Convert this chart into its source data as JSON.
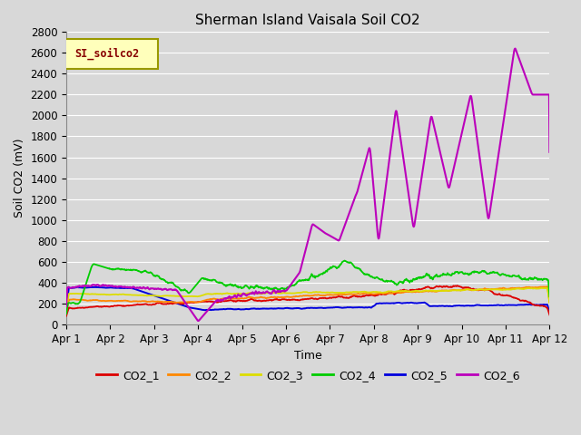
{
  "title": "Sherman Island Vaisala Soil CO2",
  "xlabel": "Time",
  "ylabel": "Soil CO2 (mV)",
  "legend_label": "SI_soilco2",
  "ylim": [
    0,
    2800
  ],
  "xlim": [
    0,
    11
  ],
  "xtick_labels": [
    "Apr 1",
    "Apr 2",
    "Apr 3",
    "Apr 4",
    "Apr 5",
    "Apr 6",
    "Apr 7",
    "Apr 8",
    "Apr 9",
    "Apr 10",
    "Apr 11",
    "Apr 12"
  ],
  "ytick_vals": [
    0,
    200,
    400,
    600,
    800,
    1000,
    1200,
    1400,
    1600,
    1800,
    2000,
    2200,
    2400,
    2600,
    2800
  ],
  "series_colors": {
    "CO2_1": "#dd0000",
    "CO2_2": "#ff8800",
    "CO2_3": "#dddd00",
    "CO2_4": "#00cc00",
    "CO2_5": "#0000dd",
    "CO2_6": "#bb00bb"
  },
  "background_color": "#d8d8d8",
  "plot_bg_color": "#d8d8d8",
  "grid_color": "#ffffff",
  "fig_width": 6.4,
  "fig_height": 4.8,
  "dpi": 100
}
